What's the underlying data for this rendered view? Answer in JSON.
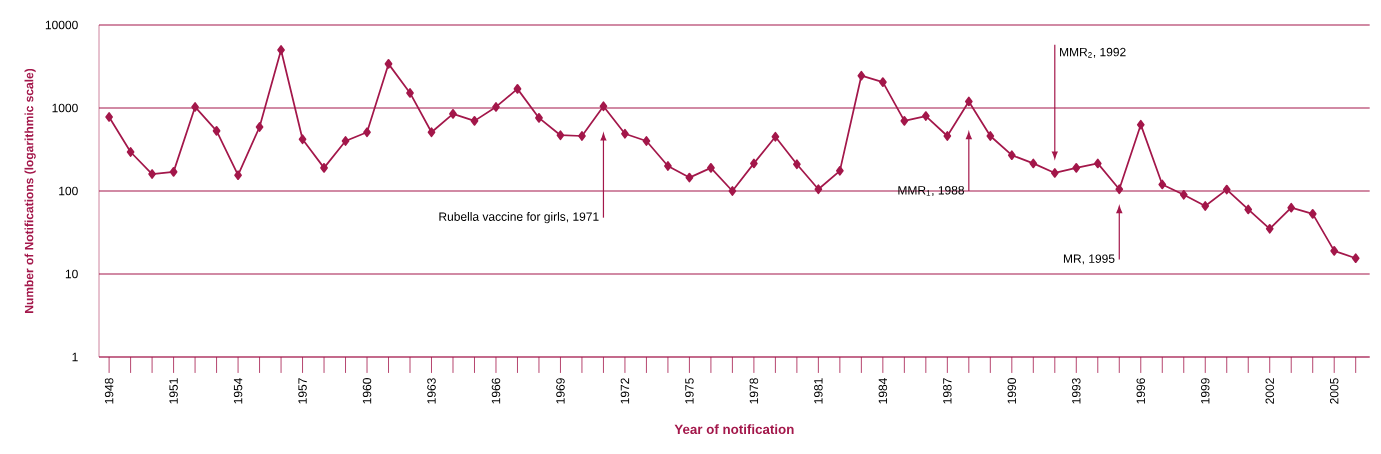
{
  "chart_data": {
    "type": "line",
    "xlabel": "Year of notification",
    "ylabel": "Number of Notifications (logarithmic scale)",
    "x": [
      1948,
      1949,
      1950,
      1951,
      1952,
      1953,
      1954,
      1955,
      1956,
      1957,
      1958,
      1959,
      1960,
      1961,
      1962,
      1963,
      1964,
      1965,
      1966,
      1967,
      1968,
      1969,
      1970,
      1971,
      1972,
      1973,
      1974,
      1975,
      1976,
      1977,
      1978,
      1979,
      1980,
      1981,
      1982,
      1983,
      1984,
      1985,
      1986,
      1987,
      1988,
      1989,
      1990,
      1991,
      1992,
      1993,
      1994,
      1995,
      1996,
      1997,
      1998,
      1999,
      2000,
      2001,
      2002,
      2003,
      2004,
      2005,
      2006
    ],
    "values": [
      780,
      295,
      160,
      170,
      1030,
      530,
      155,
      590,
      5000,
      420,
      190,
      400,
      510,
      3400,
      1520,
      510,
      850,
      700,
      1030,
      1700,
      760,
      470,
      460,
      1050,
      490,
      400,
      200,
      145,
      190,
      100,
      215,
      450,
      210,
      105,
      175,
      2450,
      2050,
      700,
      800,
      460,
      1200,
      460,
      270,
      215,
      165,
      190,
      215,
      105,
      630,
      120,
      90,
      66,
      104,
      60,
      35,
      63,
      53,
      19,
      15.5
    ],
    "color": "#a3174a",
    "marker": "diamond",
    "log": true,
    "grid": "y",
    "xlim": [
      1947.53,
      2006.65
    ],
    "ylim": [
      1,
      10000
    ],
    "yticks": [
      1,
      10,
      100,
      1000,
      10000
    ],
    "xticks": [
      1948,
      {
        "value": 1949,
        "label": null
      },
      {
        "value": 1950,
        "label": null
      },
      1951,
      {
        "value": 1952,
        "label": null
      },
      {
        "value": 1953,
        "label": null
      },
      1954,
      {
        "value": 1955,
        "label": null
      },
      {
        "value": 1956,
        "label": null
      },
      1957,
      {
        "value": 1958,
        "label": null
      },
      {
        "value": 1959,
        "label": null
      },
      1960,
      {
        "value": 1961,
        "label": null
      },
      {
        "value": 1962,
        "label": null
      },
      1963,
      {
        "value": 1964,
        "label": null
      },
      {
        "value": 1965,
        "label": null
      },
      1966,
      {
        "value": 1967,
        "label": null
      },
      {
        "value": 1968,
        "label": null
      },
      1969,
      {
        "value": 1970,
        "label": null
      },
      {
        "value": 1971,
        "label": null
      },
      1972,
      {
        "value": 1973,
        "label": null
      },
      {
        "value": 1974,
        "label": null
      },
      1975,
      {
        "value": 1976,
        "label": null
      },
      {
        "value": 1977,
        "label": null
      },
      1978,
      {
        "value": 1979,
        "label": null
      },
      {
        "value": 1980,
        "label": null
      },
      1981,
      {
        "value": 1982,
        "label": null
      },
      {
        "value": 1983,
        "label": null
      },
      1984,
      {
        "value": 1985,
        "label": null
      },
      {
        "value": 1986,
        "label": null
      },
      1987,
      {
        "value": 1988,
        "label": null
      },
      {
        "value": 1989,
        "label": null
      },
      1990,
      {
        "value": 1991,
        "label": null
      },
      {
        "value": 1992,
        "label": null
      },
      1993,
      {
        "value": 1994,
        "label": null
      },
      {
        "value": 1995,
        "label": null
      },
      1996,
      {
        "value": 1997,
        "label": null
      },
      {
        "value": 1998,
        "label": null
      },
      1999,
      {
        "value": 2000,
        "label": null
      },
      {
        "value": 2001,
        "label": null
      },
      2002,
      {
        "value": 2003,
        "label": null
      },
      {
        "value": 2004,
        "label": null
      },
      2005,
      {
        "value": 2006,
        "label": null
      }
    ],
    "annotations": [
      "Rubella vaccine for girls, 1971",
      "MMR$_{1}$, 1988",
      "MMR$_{2}$, 1992",
      "MR, 1995"
    ]
  }
}
